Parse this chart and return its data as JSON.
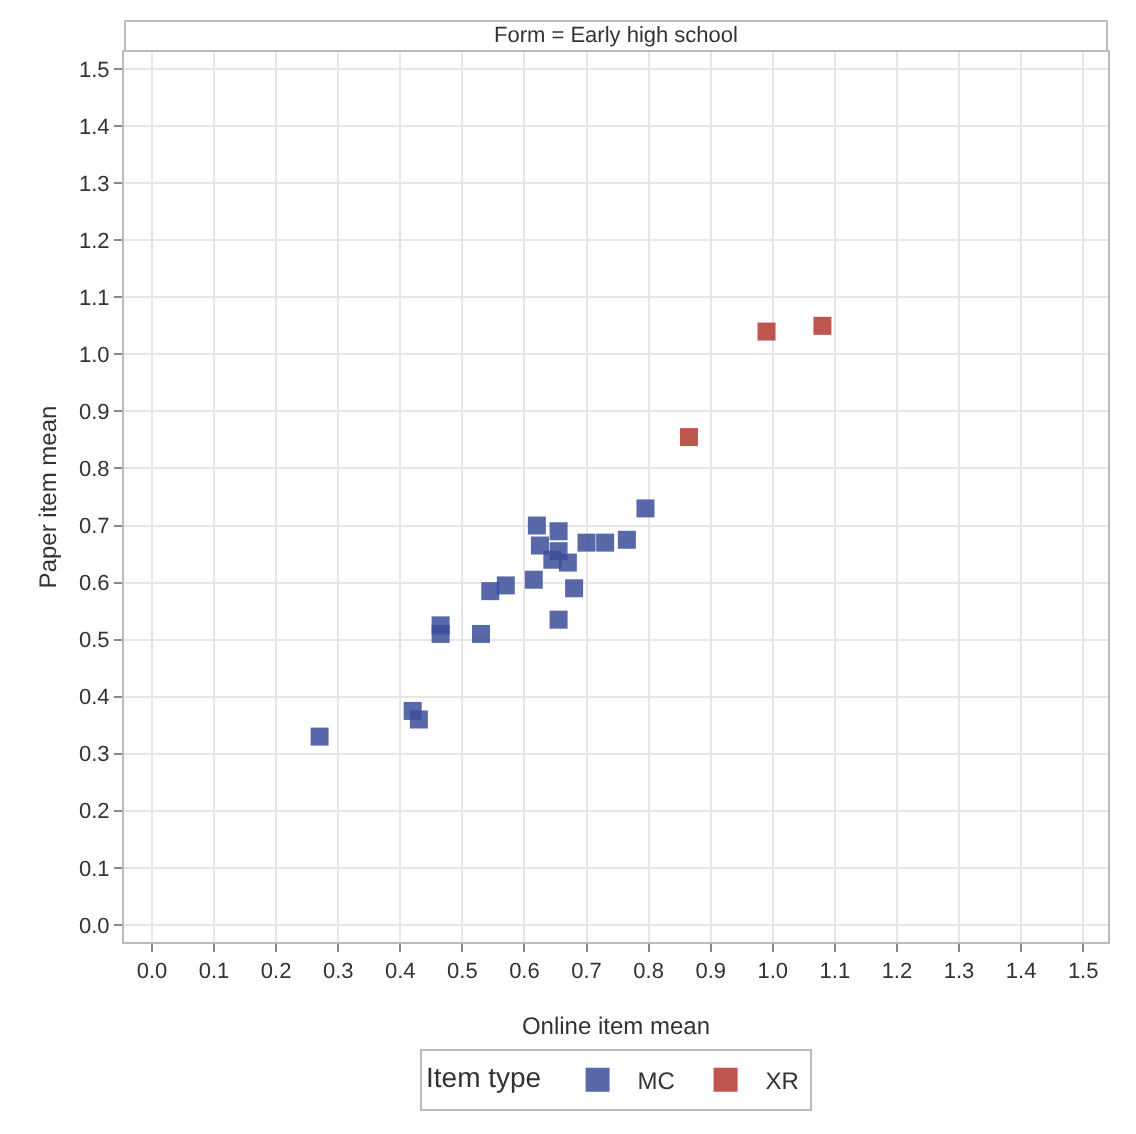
{
  "chart_data": {
    "type": "scatter",
    "title": "Form = Early high school",
    "xlabel": "Online item mean",
    "ylabel": "Paper item mean",
    "legend_title": "Item type",
    "legend": "bottom",
    "grid": true,
    "marker": "square",
    "xlim": [
      -0.045,
      1.54
    ],
    "ylim": [
      -0.03,
      1.53
    ],
    "xticks": [
      {
        "value": 0,
        "label": "0.0"
      },
      0.1,
      0.2,
      0.3,
      0.4,
      0.5,
      0.6,
      0.7,
      0.8,
      0.9,
      {
        "value": 1,
        "label": "1.0"
      },
      1.1,
      1.2,
      1.3,
      1.4,
      1.5
    ],
    "yticks": [
      {
        "value": 0,
        "label": "0.0"
      },
      0.1,
      0.2,
      0.3,
      0.4,
      0.5,
      0.6,
      0.7,
      0.8,
      0.9,
      {
        "value": 1,
        "label": "1.0"
      },
      1.1,
      1.2,
      1.3,
      1.4,
      1.5
    ],
    "series": [
      {
        "name": "MC",
        "color": "#3b4d9a",
        "x": [
          0.27,
          0.42,
          0.43,
          0.465,
          0.465,
          0.53,
          0.545,
          0.57,
          0.615,
          0.655,
          0.68,
          0.62,
          0.655,
          0.625,
          0.655,
          0.645,
          0.67,
          0.7,
          0.73,
          0.765,
          0.795
        ],
        "values": [
          0.33,
          0.375,
          0.36,
          0.525,
          0.51,
          0.51,
          0.585,
          0.595,
          0.605,
          0.535,
          0.59,
          0.7,
          0.69,
          0.665,
          0.655,
          0.64,
          0.635,
          0.67,
          0.67,
          0.675,
          0.73
        ]
      },
      {
        "name": "XR",
        "color": "#b3372f",
        "x": [
          0.865,
          0.99,
          1.08
        ],
        "values": [
          0.855,
          1.04,
          1.05
        ]
      }
    ]
  }
}
